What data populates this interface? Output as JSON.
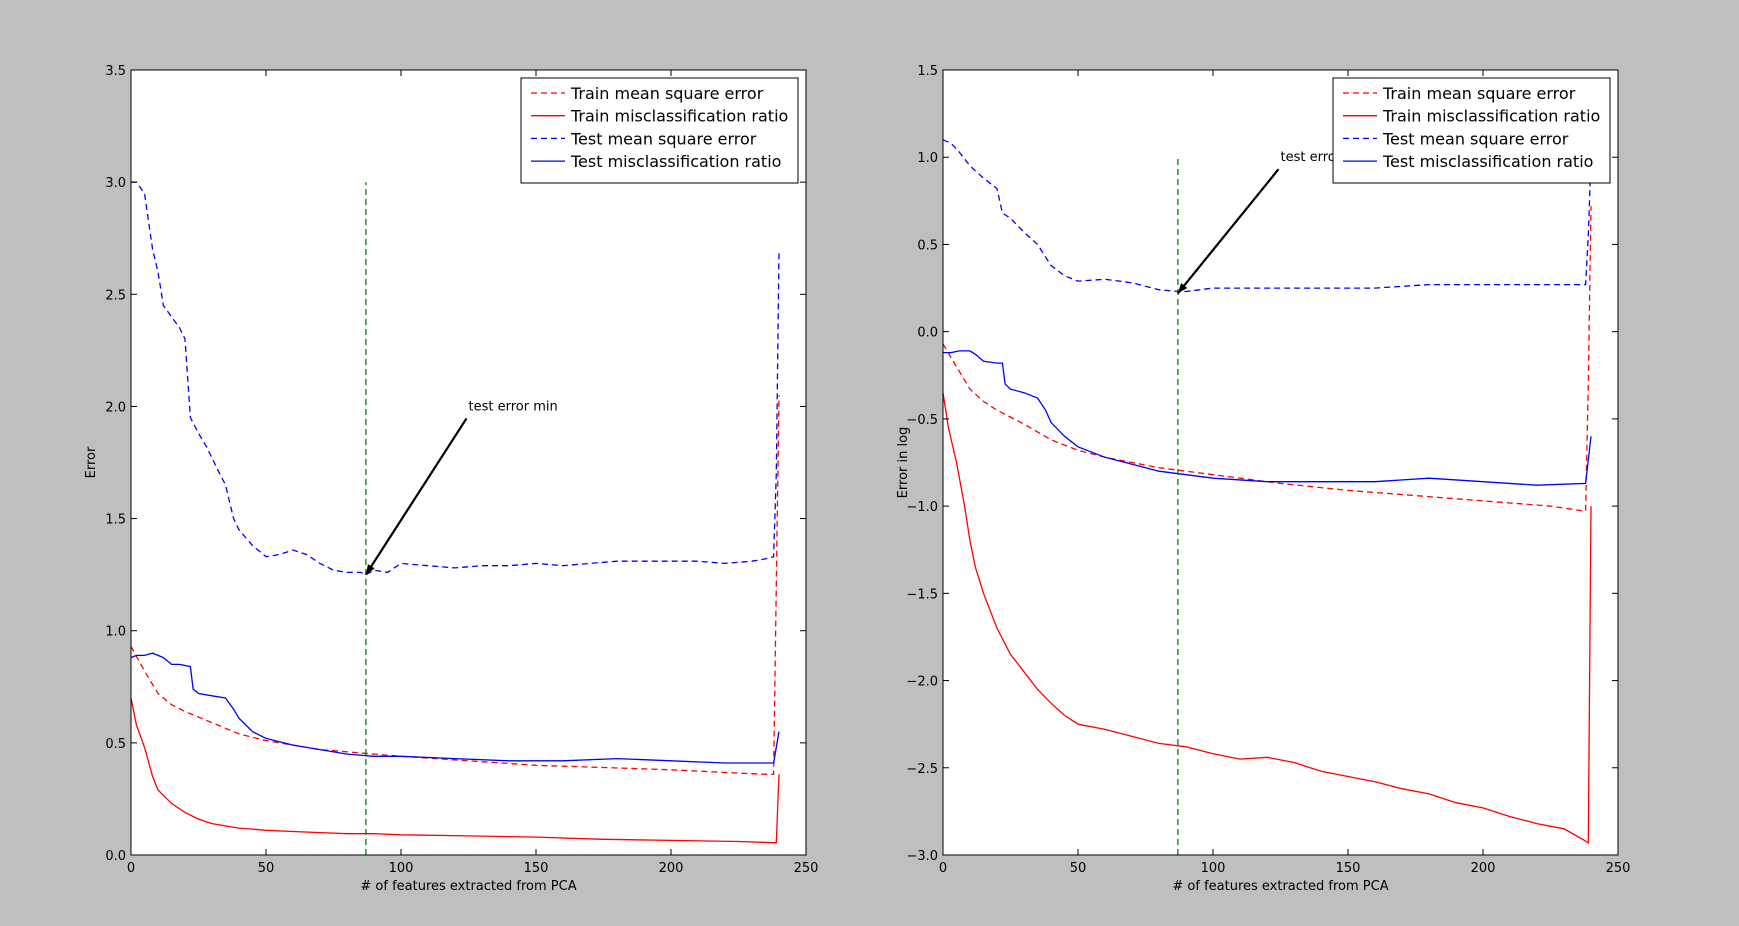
{
  "chart_data": [
    {
      "type": "line",
      "title": "",
      "xlabel": "# of features extracted from PCA",
      "ylabel": "Error",
      "xlim": [
        0,
        250
      ],
      "ylim": [
        0,
        3.5
      ],
      "xticks": [
        0,
        50,
        100,
        150,
        200,
        250
      ],
      "yticks": [
        0.0,
        0.5,
        1.0,
        1.5,
        2.0,
        2.5,
        3.0,
        3.5
      ],
      "ytick_labels": [
        "0.0",
        "0.5",
        "1.0",
        "1.5",
        "2.0",
        "2.5",
        "3.0",
        "3.5"
      ],
      "legend": "top-right",
      "grid": false,
      "series": [
        {
          "name": "Train mean square error",
          "color": "#ff0000",
          "style": "dashed",
          "x": [
            0,
            5,
            10,
            15,
            20,
            30,
            40,
            50,
            60,
            70,
            80,
            90,
            100,
            125,
            150,
            175,
            200,
            225,
            235,
            238,
            240
          ],
          "y": [
            0.93,
            0.82,
            0.72,
            0.67,
            0.64,
            0.59,
            0.54,
            0.51,
            0.49,
            0.47,
            0.46,
            0.45,
            0.44,
            0.42,
            0.4,
            0.39,
            0.38,
            0.365,
            0.36,
            0.36,
            2.05
          ]
        },
        {
          "name": "Train misclassification ratio",
          "color": "#ff0000",
          "style": "solid",
          "x": [
            0,
            2,
            5,
            8,
            10,
            15,
            20,
            25,
            30,
            40,
            50,
            60,
            70,
            80,
            90,
            100,
            125,
            150,
            175,
            200,
            225,
            238,
            239,
            240
          ],
          "y": [
            0.7,
            0.58,
            0.48,
            0.35,
            0.29,
            0.23,
            0.19,
            0.16,
            0.14,
            0.12,
            0.11,
            0.105,
            0.1,
            0.095,
            0.095,
            0.09,
            0.085,
            0.08,
            0.07,
            0.065,
            0.06,
            0.055,
            0.055,
            0.36
          ]
        },
        {
          "name": "Test mean square error",
          "color": "#0000ff",
          "style": "dashed",
          "x": [
            0,
            2,
            5,
            8,
            10,
            12,
            15,
            18,
            20,
            22,
            25,
            28,
            32,
            35,
            38,
            40,
            45,
            50,
            55,
            60,
            65,
            70,
            75,
            80,
            85,
            87,
            90,
            95,
            100,
            110,
            120,
            130,
            140,
            150,
            160,
            170,
            180,
            190,
            200,
            210,
            220,
            230,
            235,
            238,
            239,
            240
          ],
          "y": [
            3.0,
            3.0,
            2.95,
            2.7,
            2.6,
            2.45,
            2.4,
            2.35,
            2.3,
            1.95,
            1.88,
            1.82,
            1.72,
            1.65,
            1.5,
            1.45,
            1.38,
            1.33,
            1.34,
            1.36,
            1.34,
            1.3,
            1.27,
            1.26,
            1.26,
            1.25,
            1.27,
            1.26,
            1.3,
            1.29,
            1.28,
            1.29,
            1.29,
            1.3,
            1.29,
            1.3,
            1.31,
            1.31,
            1.31,
            1.31,
            1.3,
            1.31,
            1.32,
            1.33,
            1.7,
            2.7
          ]
        },
        {
          "name": "Test misclassification ratio",
          "color": "#0000ff",
          "style": "solid",
          "x": [
            0,
            2,
            5,
            8,
            10,
            12,
            15,
            18,
            22,
            23,
            25,
            30,
            35,
            38,
            40,
            45,
            50,
            60,
            70,
            80,
            90,
            100,
            120,
            140,
            160,
            180,
            200,
            220,
            238,
            240
          ],
          "y": [
            0.88,
            0.89,
            0.89,
            0.9,
            0.89,
            0.88,
            0.85,
            0.85,
            0.84,
            0.74,
            0.72,
            0.71,
            0.7,
            0.65,
            0.61,
            0.55,
            0.52,
            0.49,
            0.47,
            0.45,
            0.44,
            0.44,
            0.43,
            0.42,
            0.42,
            0.43,
            0.42,
            0.41,
            0.41,
            0.55
          ]
        },
        {
          "name": "",
          "color": "#008000",
          "style": "dashed",
          "x": [
            87,
            87
          ],
          "y": [
            0,
            3.0
          ]
        }
      ],
      "annotation": {
        "text": "test error min",
        "text_at": [
          125,
          2.0
        ],
        "arrow_to": [
          87,
          1.25
        ]
      }
    },
    {
      "type": "line",
      "title": "",
      "xlabel": "# of features extracted from PCA",
      "ylabel": "Error in log",
      "xlim": [
        0,
        250
      ],
      "ylim": [
        -3.0,
        1.5
      ],
      "xticks": [
        0,
        50,
        100,
        150,
        200,
        250
      ],
      "yticks": [
        -3.0,
        -2.5,
        -2.0,
        -1.5,
        -1.0,
        -0.5,
        0.0,
        0.5,
        1.0,
        1.5
      ],
      "ytick_labels": [
        "−3.0",
        "−2.5",
        "−2.0",
        "−1.5",
        "−1.0",
        "−0.5",
        "0.0",
        "0.5",
        "1.0",
        "1.5"
      ],
      "legend": "top-right",
      "grid": false,
      "series": [
        {
          "name": "Train mean square error",
          "color": "#ff0000",
          "style": "dashed",
          "x": [
            0,
            5,
            10,
            15,
            20,
            30,
            40,
            50,
            60,
            70,
            80,
            90,
            100,
            125,
            150,
            175,
            200,
            225,
            238,
            239,
            240
          ],
          "y": [
            -0.07,
            -0.2,
            -0.33,
            -0.4,
            -0.45,
            -0.53,
            -0.62,
            -0.68,
            -0.72,
            -0.75,
            -0.78,
            -0.8,
            -0.82,
            -0.87,
            -0.91,
            -0.94,
            -0.97,
            -1.0,
            -1.03,
            -0.3,
            0.72
          ]
        },
        {
          "name": "Train misclassification ratio",
          "color": "#ff0000",
          "style": "solid",
          "x": [
            0,
            2,
            5,
            8,
            10,
            12,
            15,
            20,
            25,
            30,
            35,
            40,
            45,
            50,
            60,
            70,
            80,
            90,
            100,
            110,
            120,
            130,
            140,
            150,
            160,
            170,
            180,
            190,
            200,
            210,
            220,
            230,
            238,
            239,
            240
          ],
          "y": [
            -0.35,
            -0.55,
            -0.75,
            -1.0,
            -1.2,
            -1.35,
            -1.5,
            -1.7,
            -1.85,
            -1.95,
            -2.05,
            -2.13,
            -2.2,
            -2.25,
            -2.28,
            -2.32,
            -2.36,
            -2.38,
            -2.42,
            -2.45,
            -2.44,
            -2.47,
            -2.52,
            -2.55,
            -2.58,
            -2.62,
            -2.65,
            -2.7,
            -2.73,
            -2.78,
            -2.82,
            -2.85,
            -2.92,
            -2.93,
            -1.0
          ]
        },
        {
          "name": "Test mean square error",
          "color": "#0000ff",
          "style": "dashed",
          "x": [
            0,
            3,
            6,
            10,
            15,
            20,
            22,
            25,
            30,
            35,
            40,
            45,
            50,
            60,
            70,
            80,
            87,
            90,
            95,
            100,
            120,
            140,
            160,
            180,
            200,
            220,
            235,
            238,
            239,
            240
          ],
          "y": [
            1.1,
            1.08,
            1.03,
            0.95,
            0.88,
            0.82,
            0.68,
            0.65,
            0.57,
            0.5,
            0.38,
            0.32,
            0.29,
            0.3,
            0.28,
            0.24,
            0.23,
            0.23,
            0.24,
            0.25,
            0.25,
            0.25,
            0.25,
            0.27,
            0.27,
            0.27,
            0.27,
            0.27,
            0.55,
            1.0
          ]
        },
        {
          "name": "Test misclassification ratio",
          "color": "#0000ff",
          "style": "solid",
          "x": [
            0,
            3,
            6,
            10,
            12,
            15,
            20,
            22,
            23,
            25,
            30,
            35,
            38,
            40,
            45,
            50,
            60,
            70,
            80,
            90,
            100,
            120,
            140,
            160,
            180,
            200,
            220,
            238,
            240
          ],
          "y": [
            -0.12,
            -0.12,
            -0.11,
            -0.11,
            -0.13,
            -0.17,
            -0.18,
            -0.18,
            -0.3,
            -0.33,
            -0.35,
            -0.38,
            -0.45,
            -0.52,
            -0.6,
            -0.66,
            -0.72,
            -0.76,
            -0.8,
            -0.82,
            -0.84,
            -0.86,
            -0.86,
            -0.86,
            -0.84,
            -0.86,
            -0.88,
            -0.87,
            -0.6
          ]
        },
        {
          "name": "",
          "color": "#008000",
          "style": "dashed",
          "x": [
            87,
            87
          ],
          "y": [
            -3.0,
            1.0
          ]
        }
      ],
      "annotation": {
        "text": "test error min",
        "text_at": [
          125,
          1.0
        ],
        "arrow_to": [
          87,
          0.22
        ]
      }
    }
  ]
}
